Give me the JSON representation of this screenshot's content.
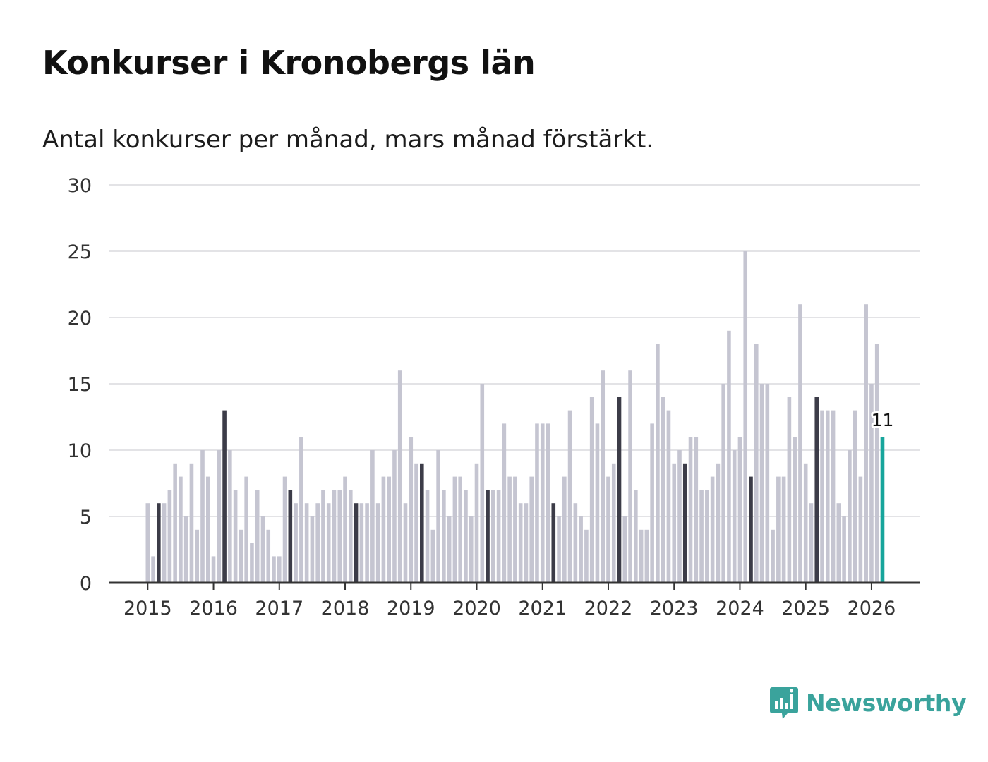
{
  "title": "Konkurser i Kronobergs län",
  "subtitle": "Antal konkurser per månad, mars månad förstärkt.",
  "brand": {
    "name": "Newsworthy",
    "icon": "bar-chart-speech-bubble-icon",
    "color": "#3aa39c"
  },
  "colors": {
    "bar": "#c5c5d1",
    "highlight": "#3c3c48",
    "latest": "#17a59c",
    "grid": "#e3e3e6",
    "axis": "#333333"
  },
  "chart_data": {
    "type": "bar",
    "title": "Konkurser i Kronobergs län",
    "subtitle": "Antal konkurser per månad, mars månad förstärkt.",
    "xlabel": "",
    "ylabel": "",
    "ylim": [
      0,
      30
    ],
    "yticks": [
      0,
      5,
      10,
      15,
      20,
      25,
      30
    ],
    "grid": true,
    "start": "2015-01",
    "highlight_month": "mars",
    "x_tick_labels": [
      "2015",
      "2016",
      "2017",
      "2018",
      "2019",
      "2020",
      "2021",
      "2022",
      "2023",
      "2024",
      "2025",
      "2026"
    ],
    "values": [
      6,
      2,
      6,
      6,
      7,
      9,
      8,
      5,
      9,
      4,
      10,
      8,
      2,
      10,
      13,
      10,
      7,
      4,
      8,
      3,
      7,
      5,
      4,
      2,
      2,
      8,
      7,
      6,
      11,
      6,
      5,
      6,
      7,
      6,
      7,
      7,
      8,
      7,
      6,
      6,
      6,
      10,
      6,
      8,
      8,
      10,
      16,
      6,
      11,
      9,
      9,
      7,
      4,
      10,
      7,
      5,
      8,
      8,
      7,
      5,
      9,
      15,
      7,
      7,
      7,
      12,
      8,
      8,
      6,
      6,
      8,
      12,
      12,
      12,
      6,
      5,
      8,
      13,
      6,
      5,
      4,
      14,
      12,
      16,
      8,
      9,
      14,
      5,
      16,
      7,
      4,
      4,
      12,
      18,
      14,
      13,
      9,
      10,
      9,
      11,
      11,
      7,
      7,
      8,
      9,
      15,
      19,
      10,
      11,
      25,
      8,
      18,
      15,
      15,
      4,
      8,
      8,
      14,
      11,
      21,
      9,
      6,
      14,
      13,
      13,
      13,
      6,
      5,
      10,
      13,
      8,
      21,
      15,
      18,
      11
    ],
    "latest_label": "11"
  }
}
